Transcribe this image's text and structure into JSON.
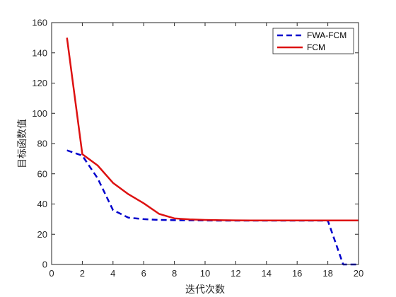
{
  "chart_data": {
    "type": "line",
    "title": "",
    "xlabel": "迭代次数",
    "ylabel": "目标函数值",
    "xlim": [
      0,
      20
    ],
    "ylim": [
      0,
      160
    ],
    "x_ticks": [
      "0",
      "2",
      "4",
      "6",
      "8",
      "10",
      "12",
      "14",
      "16",
      "18",
      "20"
    ],
    "y_ticks": [
      "0",
      "20",
      "40",
      "60",
      "80",
      "100",
      "120",
      "140",
      "160"
    ],
    "grid": false,
    "legend_position": "top-right",
    "series": [
      {
        "name": "FWA-FCM",
        "color": "#0000cc",
        "style": "dashed",
        "x": [
          1,
          2,
          3,
          4,
          5,
          6,
          7,
          8,
          9,
          10,
          11,
          12,
          13,
          14,
          15,
          16,
          17,
          18,
          19,
          20
        ],
        "y": [
          75.5,
          72,
          57,
          36,
          31,
          30,
          29.5,
          29.3,
          29.2,
          29.1,
          29,
          29,
          29,
          29,
          29,
          29,
          29,
          29,
          0,
          0
        ]
      },
      {
        "name": "FCM",
        "color": "#dd1111",
        "style": "solid",
        "x": [
          1,
          2,
          3,
          4,
          5,
          6,
          7,
          8,
          9,
          10,
          11,
          12,
          13,
          14,
          15,
          16,
          17,
          18,
          19,
          20
        ],
        "y": [
          150,
          73,
          65.5,
          54,
          46.5,
          40.5,
          33.5,
          30.5,
          29.8,
          29.5,
          29.3,
          29.2,
          29.1,
          29.1,
          29.1,
          29.1,
          29.1,
          29.1,
          29.1,
          29.1
        ]
      }
    ]
  }
}
